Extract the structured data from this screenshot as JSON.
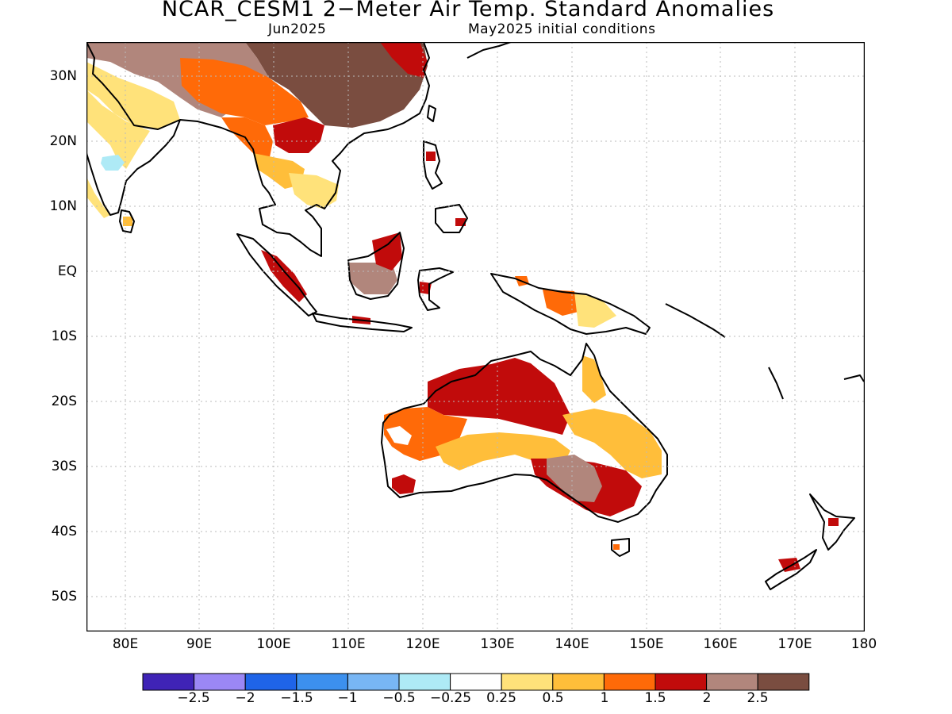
{
  "title": "NCAR_CESM1 2−Meter Air Temp. Standard Anomalies",
  "valid_month": "Jun2025",
  "initial_conditions": "May2025 initial conditions",
  "lat_labels": [
    "30N",
    "20N",
    "10N",
    "EQ",
    "10S",
    "20S",
    "30S",
    "40S",
    "50S"
  ],
  "lon_labels": [
    "80E",
    "90E",
    "100E",
    "110E",
    "120E",
    "130E",
    "140E",
    "150E",
    "160E",
    "170E",
    "180"
  ],
  "colorbar": {
    "colors": [
      "#3f23b6",
      "#9b87f5",
      "#1f64e8",
      "#3c90ee",
      "#78b6f4",
      "#aeeaf6",
      "#ffffff",
      "#ffe27a",
      "#ffbe3a",
      "#ff6a08",
      "#c10b0b",
      "#b1867c",
      "#7a4d40"
    ],
    "labels": [
      "−2.5",
      "−2",
      "−1.5",
      "−1",
      "−0.5",
      "−0.25",
      "0.25",
      "0.5",
      "1",
      "1.5",
      "2",
      "2.5"
    ]
  },
  "regions": [
    {
      "name": "china-interior",
      "level": 12
    },
    {
      "name": "tibet",
      "level": 11
    },
    {
      "name": "northeast-china",
      "level": 10
    },
    {
      "name": "india-north",
      "level": 7
    },
    {
      "name": "india-central",
      "level": 7
    },
    {
      "name": "india-west-coast",
      "level": 7
    },
    {
      "name": "sri-lanka",
      "level": 8
    },
    {
      "name": "bay-of-bengal-cool-patch",
      "level": 5
    },
    {
      "name": "himalaya-belt",
      "level": 9
    },
    {
      "name": "myanmar",
      "level": 9
    },
    {
      "name": "thailand",
      "level": 8
    },
    {
      "name": "cambodia-laos",
      "level": 7
    },
    {
      "name": "indochina-core",
      "level": 10
    },
    {
      "name": "borneo-south",
      "level": 11
    },
    {
      "name": "borneo-north",
      "level": 10
    },
    {
      "name": "sumatra",
      "level": 10
    },
    {
      "name": "java",
      "level": 10
    },
    {
      "name": "sulawesi",
      "level": 10
    },
    {
      "name": "philippines",
      "level": 10
    },
    {
      "name": "new-guinea-west",
      "level": 9
    },
    {
      "name": "new-guinea-east",
      "level": 7
    },
    {
      "name": "australia-north",
      "level": 10
    },
    {
      "name": "australia-cape-york",
      "level": 8
    },
    {
      "name": "australia-west",
      "level": 9
    },
    {
      "name": "australia-west-cool",
      "level": 6
    },
    {
      "name": "australia-central",
      "level": 8
    },
    {
      "name": "australia-east",
      "level": 8
    },
    {
      "name": "australia-southeast",
      "level": 10
    },
    {
      "name": "australia-southeast-peak",
      "level": 11
    },
    {
      "name": "australia-southwest",
      "level": 10
    },
    {
      "name": "tasmania",
      "level": 9
    },
    {
      "name": "new-zealand-north",
      "level": 10
    },
    {
      "name": "new-zealand-south",
      "level": 10
    }
  ]
}
